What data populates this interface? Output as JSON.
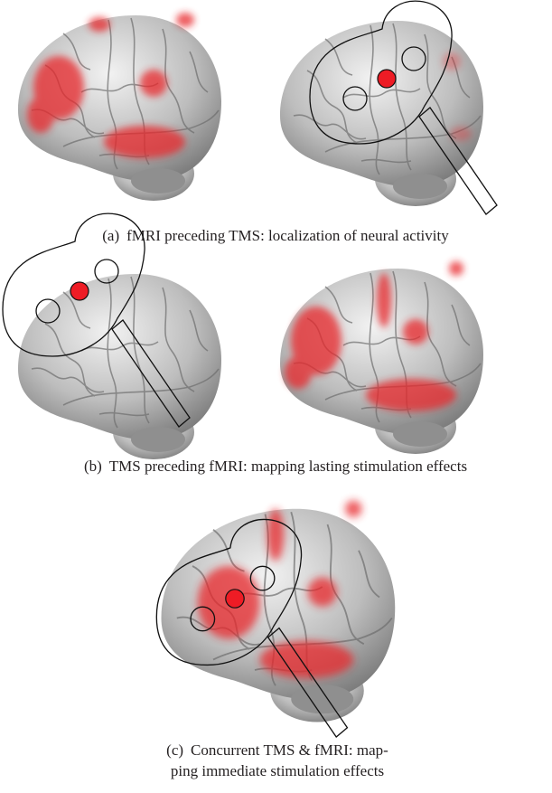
{
  "panels": [
    {
      "label": "(a)",
      "caption": [
        "fMRI preceding TMS: localization of neural activity"
      ]
    },
    {
      "label": "(b)",
      "caption": [
        "TMS preceding fMRI: mapping lasting stimulation effects"
      ]
    },
    {
      "label": "(c)",
      "caption": [
        "Concurrent TMS & fMRI: map-",
        "ping immediate stimulation effects"
      ]
    }
  ]
}
